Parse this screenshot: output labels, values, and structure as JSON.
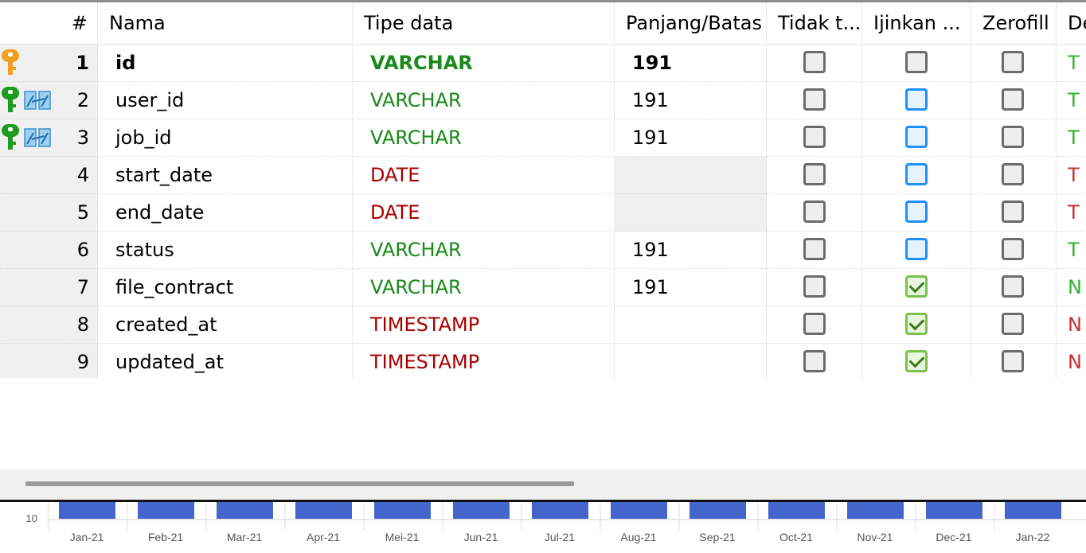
{
  "columns": {
    "num": "#",
    "name": "Nama",
    "type": "Tipe data",
    "length": "Panjang/Batas",
    "not_null": "Tidak t...",
    "allow_null": "Ijinkan ...",
    "zerofill": "Zerofill",
    "default": "De"
  },
  "rows": [
    {
      "num": "1",
      "name": "id",
      "type": "VARCHAR",
      "length": "191",
      "key": "primary",
      "default": "T"
    },
    {
      "num": "2",
      "name": "user_id",
      "type": "VARCHAR",
      "length": "191",
      "key": "foreign",
      "default": "T"
    },
    {
      "num": "3",
      "name": "job_id",
      "type": "VARCHAR",
      "length": "191",
      "key": "foreign",
      "default": "T"
    },
    {
      "num": "4",
      "name": "start_date",
      "type": "DATE",
      "length": "",
      "key": "",
      "default": "T"
    },
    {
      "num": "5",
      "name": "end_date",
      "type": "DATE",
      "length": "",
      "key": "",
      "default": "T"
    },
    {
      "num": "6",
      "name": "status",
      "type": "VARCHAR",
      "length": "191",
      "key": "",
      "default": "T"
    },
    {
      "num": "7",
      "name": "file_contract",
      "type": "VARCHAR",
      "length": "191",
      "key": "",
      "default": "N"
    },
    {
      "num": "8",
      "name": "created_at",
      "type": "TIMESTAMP",
      "length": "",
      "key": "",
      "default": "N"
    },
    {
      "num": "9",
      "name": "updated_at",
      "type": "TIMESTAMP",
      "length": "",
      "key": "",
      "default": "N"
    }
  ],
  "flags": [
    {
      "not_null": "unchecked",
      "allow_null": "unchecked",
      "zerofill": "unchecked"
    },
    {
      "not_null": "unchecked",
      "allow_null": "highlighted",
      "zerofill": "unchecked"
    },
    {
      "not_null": "unchecked",
      "allow_null": "highlighted",
      "zerofill": "unchecked"
    },
    {
      "not_null": "unchecked",
      "allow_null": "highlighted",
      "zerofill": "unchecked"
    },
    {
      "not_null": "unchecked",
      "allow_null": "highlighted",
      "zerofill": "unchecked"
    },
    {
      "not_null": "unchecked",
      "allow_null": "highlighted",
      "zerofill": "unchecked"
    },
    {
      "not_null": "unchecked",
      "allow_null": "checked",
      "zerofill": "unchecked"
    },
    {
      "not_null": "unchecked",
      "allow_null": "checked",
      "zerofill": "unchecked"
    },
    {
      "not_null": "unchecked",
      "allow_null": "checked",
      "zerofill": "unchecked"
    }
  ],
  "colors": {
    "type_varchar": "#1a8a1a",
    "type_temporal": "#a80000",
    "primary_key": "#f0a020",
    "foreign_key": "#1f9c1f",
    "chart_bar": "#4466cc"
  },
  "chart_data": {
    "type": "bar",
    "categories": [
      "Jan-21",
      "Feb-21",
      "Mar-21",
      "Apr-21",
      "Mei-21",
      "Jun-21",
      "Jul-21",
      "Aug-21",
      "Sep-21",
      "Oct-21",
      "Nov-21",
      "Dec-21",
      "Jan-22"
    ],
    "y_tick": "10",
    "title": "",
    "xlabel": "",
    "ylabel": ""
  }
}
